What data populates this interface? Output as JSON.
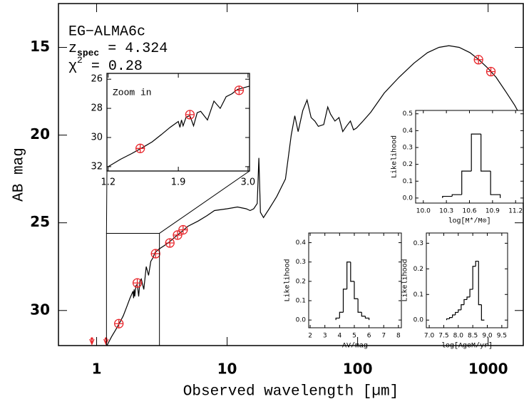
{
  "chart_data": [
    {
      "type": "line",
      "xscale": "log",
      "xlabel": "Observed wavelength [µm]",
      "ylabel": "AB mag",
      "xlim": [
        0.51,
        1860
      ],
      "ylim": [
        32.0,
        12.5
      ],
      "xticks": [
        1,
        10,
        100,
        1000
      ],
      "yticks": [
        15,
        20,
        25,
        30
      ],
      "annotations": {
        "source": "EG−ALMA6c",
        "redshift": {
          "symbol": "z",
          "subscript": "spec",
          "text": " = 4.324"
        },
        "chi2": {
          "symbol": "χ",
          "superscript": "2",
          "text": " = 0.28"
        }
      },
      "model": {
        "color": "#000000",
        "x": [
          1.2,
          1.3,
          1.4,
          1.5,
          1.6,
          1.7,
          1.8,
          1.9,
          1.92,
          1.94,
          1.96,
          2.0,
          2.05,
          2.1,
          2.15,
          2.2,
          2.3,
          2.4,
          2.5,
          2.6,
          2.7,
          2.8,
          3.0,
          3.3,
          3.6,
          4.0,
          4.5,
          5,
          6,
          7,
          8,
          10,
          12,
          14,
          15,
          16,
          17,
          17.5,
          18,
          19,
          21,
          24,
          28,
          31,
          33,
          35,
          38,
          41,
          44,
          47,
          50,
          55,
          59,
          62,
          67,
          72,
          77,
          82,
          88,
          93,
          98,
          110,
          126,
          160,
          208,
          270,
          343,
          420,
          500,
          600,
          727,
          850,
          1000,
          1150,
          1360,
          1600,
          1860
        ],
        "values": [
          32.0,
          31.5,
          31.1,
          30.7,
          30.3,
          29.8,
          29.3,
          28.9,
          29.3,
          28.8,
          29.2,
          28.6,
          28.5,
          29.2,
          28.3,
          28.2,
          28.8,
          27.5,
          28.0,
          27.2,
          27.0,
          26.7,
          26.5,
          26.3,
          26.1,
          25.8,
          25.5,
          25.2,
          24.9,
          24.6,
          24.3,
          24.2,
          24.1,
          24.2,
          24.3,
          24.2,
          23.9,
          21.3,
          24.4,
          24.7,
          24.2,
          23.5,
          22.5,
          20.0,
          18.9,
          19.8,
          18.6,
          18.0,
          19.0,
          19.2,
          19.5,
          19.4,
          18.4,
          18.8,
          19.2,
          19.0,
          19.8,
          19.5,
          19.2,
          19.7,
          19.6,
          19.2,
          18.7,
          17.6,
          16.7,
          15.9,
          15.3,
          15.0,
          14.9,
          15.0,
          15.3,
          15.7,
          16.2,
          16.7,
          17.5,
          18.3,
          19.2
        ]
      },
      "photometry": {
        "color": "#e8252a",
        "x": [
          1.48,
          2.05,
          2.83,
          3.64,
          4.17,
          4.6,
          844,
          1050
        ],
        "values": [
          30.75,
          28.43,
          26.76,
          26.15,
          25.7,
          25.4,
          15.7,
          16.38
        ]
      },
      "upper_limits": {
        "color": "#e8252a",
        "x": [
          0.92,
          1.18
        ],
        "values": [
          31.6,
          31.6
        ]
      }
    },
    {
      "type": "line",
      "xscale": "log",
      "title": "Zoom in",
      "xlim": [
        1.19,
        3.03
      ],
      "ylim": [
        32.3,
        25.6
      ],
      "xticks": [
        1.2,
        1.9,
        {
          "value": 3,
          "label": "3.0"
        }
      ],
      "yticks": [
        26,
        28,
        30,
        32
      ]
    },
    {
      "type": "histogram",
      "ylabel": "Likelihood",
      "xlabel": "log[M*/M⊙]",
      "xlim": [
        9.9,
        11.3
      ],
      "ylim": [
        -0.03,
        0.52
      ],
      "xticks": [
        {
          "value": 10,
          "label": "10.0"
        },
        10.3,
        10.6,
        10.9,
        11.2
      ],
      "yticks": [
        {
          "value": 0,
          "label": "0.0"
        },
        0.1,
        0.2,
        0.3,
        0.4,
        0.5
      ],
      "bins": [
        10.25,
        10.375,
        10.5,
        10.625,
        10.75,
        10.875,
        11.0
      ],
      "values": [
        0.01,
        0.02,
        0.16,
        0.38,
        0.16,
        0.02
      ]
    },
    {
      "type": "histogram",
      "ylabel": "Likelihood",
      "xlabel": "AV/mag",
      "xlim": [
        1.9,
        8.2
      ],
      "ylim": [
        -0.04,
        0.45
      ],
      "xticks": [
        2,
        3,
        4,
        5,
        6,
        7,
        8
      ],
      "yticks": [
        {
          "value": 0,
          "label": "0.0"
        },
        0.1,
        0.2,
        0.3,
        0.4
      ],
      "bins": [
        3.75,
        4.0,
        4.25,
        4.5,
        4.75,
        5.0,
        5.25,
        5.5,
        5.75,
        6.0
      ],
      "values": [
        0.01,
        0.04,
        0.16,
        0.3,
        0.2,
        0.11,
        0.04,
        0.02,
        0.01
      ]
    },
    {
      "type": "histogram",
      "ylabel": "Likelihood",
      "xlabel": "log[AgeM/yr]",
      "xlim": [
        6.9,
        9.7
      ],
      "ylim": [
        -0.03,
        0.34
      ],
      "xticks": [
        {
          "value": 7,
          "label": "7.0"
        },
        7.5,
        {
          "value": 8,
          "label": "8.0"
        },
        8.5,
        {
          "value": 9,
          "label": "9.0"
        },
        9.5
      ],
      "yticks": [
        {
          "value": 0,
          "label": "0.0"
        },
        0.1,
        0.2,
        0.3
      ],
      "bins": [
        7.6,
        7.7,
        7.8,
        7.9,
        8.0,
        8.1,
        8.2,
        8.3,
        8.4,
        8.5,
        8.6,
        8.7,
        8.8,
        8.9
      ],
      "values": [
        0.005,
        0.01,
        0.02,
        0.03,
        0.04,
        0.06,
        0.08,
        0.09,
        0.12,
        0.21,
        0.23,
        0.06,
        0.0
      ]
    }
  ]
}
